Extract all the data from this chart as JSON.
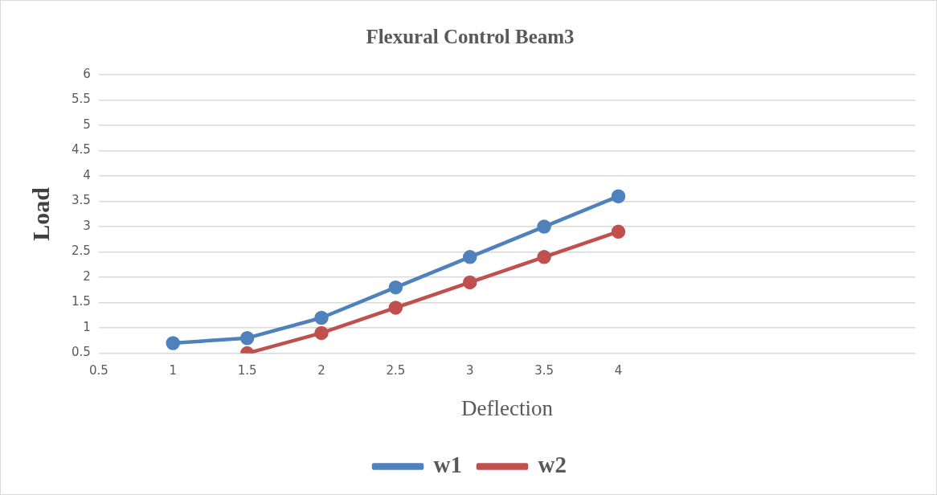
{
  "chart_data": {
    "type": "line",
    "title": "Flexural Control Beam3",
    "xlabel": "Deflection",
    "ylabel": "Load",
    "categories": [
      "0.5",
      "1",
      "1.5",
      "2",
      "2.5",
      "3",
      "3.5",
      "4",
      null,
      null,
      null,
      null
    ],
    "series": [
      {
        "name": "w1",
        "color": "#4f81bd",
        "values": [
          null,
          0.7,
          0.8,
          1.2,
          1.8,
          2.4,
          3.0,
          3.6,
          null,
          null,
          null,
          null
        ]
      },
      {
        "name": "w2",
        "color": "#c0504d",
        "values": [
          null,
          null,
          0.5,
          0.9,
          1.4,
          1.9,
          2.4,
          2.9,
          null,
          null,
          null,
          null
        ]
      }
    ],
    "ylim": [
      0.5,
      6
    ],
    "yticks": [
      0.5,
      1,
      1.5,
      2,
      2.5,
      3,
      3.5,
      4,
      4.5,
      5,
      5.5,
      6
    ],
    "grid": "y",
    "legend": "bottom",
    "marker": "circle",
    "line_style": "solid"
  }
}
